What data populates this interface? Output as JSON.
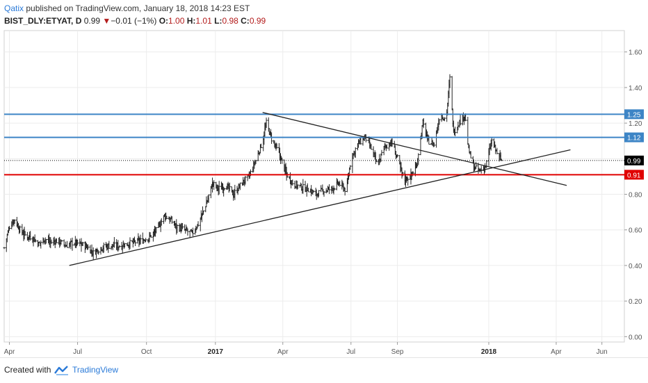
{
  "header": {
    "author": "Qatix",
    "published_text": " published on TradingView.com, January 18, 2018 14:23 EST"
  },
  "symbol_line": {
    "symbol": "BIST_DLY:ETYAT, D",
    "last": "0.99",
    "change": "−0.01 (−1%)",
    "open_label": "O:",
    "open": "1.00",
    "high_label": "H:",
    "high": "1.01",
    "low_label": "L:",
    "low": "0.98",
    "close_label": "C:",
    "close": "0.99"
  },
  "footer": {
    "created_with": "Created with",
    "brand": "TradingView"
  },
  "chart_data": {
    "type": "bar",
    "title": "BIST_DLY:ETYAT, D",
    "xlabel": "",
    "ylabel": "",
    "ylim": [
      -0.03,
      1.72
    ],
    "xlim": [
      "2016-03-25",
      "2018-07-01"
    ],
    "grid": true,
    "y_ticks": [
      "0.00",
      "0.20",
      "0.40",
      "0.60",
      "0.80",
      "1.00",
      "1.20",
      "1.40",
      "1.60"
    ],
    "x_ticks": [
      {
        "label": "Apr",
        "date": "2016-04-01",
        "bold": false
      },
      {
        "label": "Jul",
        "date": "2016-07-01",
        "bold": false
      },
      {
        "label": "Oct",
        "date": "2016-10-01",
        "bold": false
      },
      {
        "label": "2017",
        "date": "2017-01-01",
        "bold": true
      },
      {
        "label": "Apr",
        "date": "2017-04-01",
        "bold": false
      },
      {
        "label": "Jul",
        "date": "2017-07-01",
        "bold": false
      },
      {
        "label": "Sep",
        "date": "2017-09-01",
        "bold": false
      },
      {
        "label": "2018",
        "date": "2018-01-01",
        "bold": true
      },
      {
        "label": "Apr",
        "date": "2018-04-01",
        "bold": false
      },
      {
        "label": "Jun",
        "date": "2018-06-01",
        "bold": false
      }
    ],
    "price_series": [
      [
        "2016-03-25",
        0.5
      ],
      [
        "2016-04-01",
        0.62
      ],
      [
        "2016-04-08",
        0.66
      ],
      [
        "2016-04-15",
        0.6
      ],
      [
        "2016-04-22",
        0.57
      ],
      [
        "2016-05-01",
        0.56
      ],
      [
        "2016-05-10",
        0.52
      ],
      [
        "2016-05-18",
        0.55
      ],
      [
        "2016-05-26",
        0.53
      ],
      [
        "2016-06-05",
        0.54
      ],
      [
        "2016-06-15",
        0.51
      ],
      [
        "2016-06-25",
        0.53
      ],
      [
        "2016-07-05",
        0.52
      ],
      [
        "2016-07-15",
        0.5
      ],
      [
        "2016-07-22",
        0.47
      ],
      [
        "2016-08-01",
        0.5
      ],
      [
        "2016-08-12",
        0.51
      ],
      [
        "2016-08-25",
        0.51
      ],
      [
        "2016-09-05",
        0.52
      ],
      [
        "2016-09-15",
        0.53
      ],
      [
        "2016-09-25",
        0.54
      ],
      [
        "2016-10-05",
        0.56
      ],
      [
        "2016-10-15",
        0.6
      ],
      [
        "2016-10-25",
        0.68
      ],
      [
        "2016-11-01",
        0.66
      ],
      [
        "2016-11-10",
        0.62
      ],
      [
        "2016-11-20",
        0.6
      ],
      [
        "2016-12-01",
        0.58
      ],
      [
        "2016-12-10",
        0.64
      ],
      [
        "2016-12-20",
        0.75
      ],
      [
        "2016-12-28",
        0.86
      ],
      [
        "2017-01-05",
        0.83
      ],
      [
        "2017-01-15",
        0.85
      ],
      [
        "2017-01-25",
        0.8
      ],
      [
        "2017-02-05",
        0.86
      ],
      [
        "2017-02-15",
        0.9
      ],
      [
        "2017-02-25",
        1.0
      ],
      [
        "2017-03-05",
        1.1
      ],
      [
        "2017-03-10",
        1.2
      ],
      [
        "2017-03-18",
        1.1
      ],
      [
        "2017-03-28",
        1.02
      ],
      [
        "2017-04-05",
        0.92
      ],
      [
        "2017-04-15",
        0.86
      ],
      [
        "2017-04-25",
        0.84
      ],
      [
        "2017-05-05",
        0.83
      ],
      [
        "2017-05-15",
        0.8
      ],
      [
        "2017-05-25",
        0.82
      ],
      [
        "2017-06-05",
        0.83
      ],
      [
        "2017-06-15",
        0.86
      ],
      [
        "2017-06-25",
        0.82
      ],
      [
        "2017-07-01",
        1.0
      ],
      [
        "2017-07-10",
        1.08
      ],
      [
        "2017-07-20",
        1.12
      ],
      [
        "2017-07-30",
        1.04
      ],
      [
        "2017-08-05",
        0.96
      ],
      [
        "2017-08-15",
        1.07
      ],
      [
        "2017-08-25",
        1.09
      ],
      [
        "2017-09-01",
        1.0
      ],
      [
        "2017-09-10",
        0.88
      ],
      [
        "2017-09-18",
        0.9
      ],
      [
        "2017-09-26",
        0.95
      ],
      [
        "2017-10-05",
        1.2
      ],
      [
        "2017-10-12",
        1.1
      ],
      [
        "2017-10-20",
        1.08
      ],
      [
        "2017-10-28",
        1.25
      ],
      [
        "2017-11-05",
        1.22
      ],
      [
        "2017-11-10",
        1.45
      ],
      [
        "2017-11-15",
        1.15
      ],
      [
        "2017-11-22",
        1.2
      ],
      [
        "2017-11-30",
        1.25
      ],
      [
        "2017-12-05",
        1.05
      ],
      [
        "2017-12-12",
        0.95
      ],
      [
        "2017-12-20",
        0.93
      ],
      [
        "2017-12-28",
        0.96
      ],
      [
        "2018-01-05",
        1.1
      ],
      [
        "2018-01-10",
        1.05
      ],
      [
        "2018-01-18",
        0.99
      ]
    ],
    "horizontal_lines": [
      {
        "value": 1.25,
        "color": "#3d85c6",
        "label": "1.25"
      },
      {
        "value": 1.12,
        "color": "#3d85c6",
        "label": "1.12"
      },
      {
        "value": 0.91,
        "color": "#e00000",
        "label": "0.91"
      }
    ],
    "current_price": {
      "value": 0.99,
      "label": "0.99",
      "color": "#000000"
    },
    "trend_lines": [
      {
        "from": [
          "2016-06-20",
          0.4
        ],
        "to": [
          "2018-04-20",
          1.05
        ],
        "color": "#222222"
      },
      {
        "from": [
          "2017-03-05",
          1.26
        ],
        "to": [
          "2018-04-15",
          0.85
        ],
        "color": "#222222"
      }
    ],
    "colors": {
      "bars": "#222222",
      "grid": "#ececec",
      "axis_text": "#555555"
    }
  }
}
